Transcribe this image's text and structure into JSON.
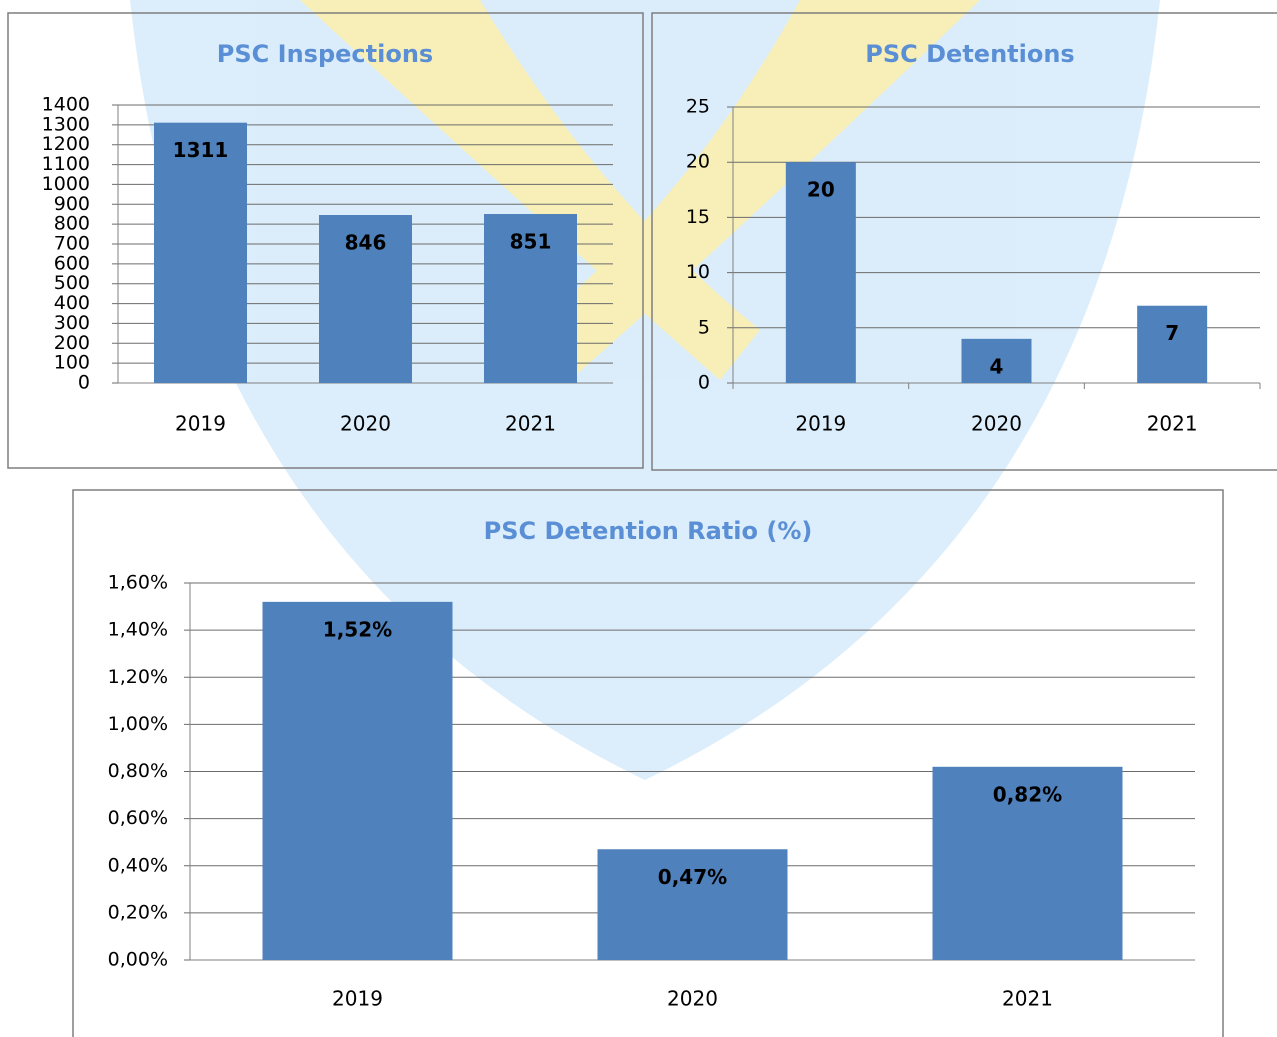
{
  "chart_data": [
    {
      "type": "bar",
      "title": "PSC Inspections",
      "categories": [
        "2019",
        "2020",
        "2021"
      ],
      "values": [
        1311,
        846,
        851
      ],
      "color": "#4f81bd",
      "ylim": [
        0,
        1400
      ],
      "yticks": [
        0,
        100,
        200,
        300,
        400,
        500,
        600,
        700,
        800,
        900,
        1000,
        1100,
        1200,
        1300,
        1400
      ],
      "grid": true
    },
    {
      "type": "bar",
      "title": "PSC Detentions",
      "categories": [
        "2019",
        "2020",
        "2021"
      ],
      "values": [
        20,
        4,
        7
      ],
      "color": "#4f81bd",
      "ylim": [
        0,
        25
      ],
      "yticks": [
        0,
        5,
        10,
        15,
        20,
        25
      ],
      "grid": true
    },
    {
      "type": "bar",
      "title": "PSC Detention Ratio (%)",
      "categories": [
        "2019",
        "2020",
        "2021"
      ],
      "values": [
        1.52,
        0.47,
        0.82
      ],
      "value_labels": [
        "1,52%",
        "0,47%",
        "0,82%"
      ],
      "color": "#4f81bd",
      "ylim": [
        0,
        1.6
      ],
      "yticks": [
        {
          "value": 0,
          "label": "0,00%"
        },
        {
          "value": 0.2,
          "label": "0,20%"
        },
        {
          "value": 0.4,
          "label": "0,40%"
        },
        {
          "value": 0.6,
          "label": "0,60%"
        },
        {
          "value": 0.8,
          "label": "0,80%"
        },
        {
          "value": 1.0,
          "label": "1,00%"
        },
        {
          "value": 1.2,
          "label": "1,20%"
        },
        {
          "value": 1.4,
          "label": "1,40%"
        },
        {
          "value": 1.6,
          "label": "1,60%"
        }
      ],
      "grid": true
    }
  ]
}
